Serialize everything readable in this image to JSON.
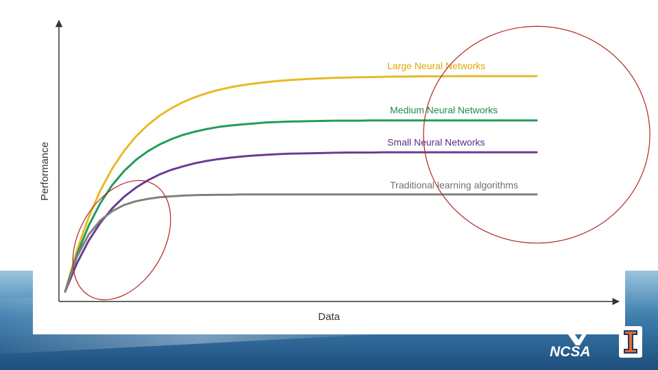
{
  "chart_data": {
    "type": "line",
    "title": "",
    "xlabel": "Data",
    "ylabel": "Performance",
    "xlim": [
      0,
      100
    ],
    "ylim": [
      0,
      100
    ],
    "grid": false,
    "legend": "inline-right",
    "x": [
      0,
      2.5,
      5,
      7.5,
      10,
      12.5,
      15,
      17.5,
      20,
      22.5,
      25,
      27.5,
      30,
      32.5,
      35,
      37.5,
      40,
      42.5,
      45,
      47.5,
      50,
      52.5,
      55,
      57.5,
      60,
      62.5,
      65,
      67.5,
      70,
      72.5,
      75,
      77.5,
      80,
      82.5,
      85,
      87.5,
      90,
      92.5,
      95,
      97.5,
      100
    ],
    "series": [
      {
        "name": "Large Neural Networks",
        "color": "#e8b924",
        "values": [
          3.0,
          20.6,
          34.8,
          46.3,
          55.6,
          63.1,
          69.2,
          74.1,
          78.1,
          81.3,
          83.9,
          86.0,
          87.7,
          89.1,
          90.2,
          91.1,
          91.8,
          92.4,
          92.9,
          93.3,
          93.6,
          93.9,
          94.1,
          94.3,
          94.4,
          94.5,
          94.6,
          94.7,
          94.8,
          94.8,
          94.9,
          94.9,
          94.9,
          95.0,
          95.0,
          95.0,
          95.0,
          95.0,
          95.0,
          95.0,
          95.0
        ]
      },
      {
        "name": "Medium Neural Networks",
        "color": "#1f9c5a",
        "values": [
          3.0,
          18.8,
          31.2,
          40.9,
          48.5,
          54.5,
          59.2,
          62.9,
          65.8,
          68.1,
          69.9,
          71.3,
          72.4,
          73.3,
          73.9,
          74.4,
          74.8,
          75.2,
          75.4,
          75.6,
          75.7,
          75.8,
          75.9,
          76.0,
          76.0,
          76.0,
          76.1,
          76.1,
          76.1,
          76.1,
          76.1,
          76.1,
          76.1,
          76.1,
          76.1,
          76.1,
          76.1,
          76.1,
          76.1,
          76.1,
          76.1
        ]
      },
      {
        "name": "Small Neural Networks",
        "color": "#6b3a93",
        "values": [
          3.0,
          15.1,
          24.8,
          32.5,
          38.6,
          43.5,
          47.4,
          50.5,
          53.0,
          55.0,
          56.5,
          57.8,
          58.8,
          59.6,
          60.2,
          60.7,
          61.1,
          61.4,
          61.7,
          61.9,
          62.0,
          62.1,
          62.2,
          62.3,
          62.4,
          62.4,
          62.4,
          62.5,
          62.5,
          62.5,
          62.5,
          62.5,
          62.5,
          62.5,
          62.5,
          62.5,
          62.5,
          62.5,
          62.5,
          62.5,
          62.5
        ]
      },
      {
        "name": "Traditional learning algorithms",
        "color": "#7f7f7f",
        "values": [
          3.0,
          17.9,
          27.4,
          33.5,
          37.4,
          40.0,
          41.6,
          42.6,
          43.3,
          43.7,
          44.0,
          44.2,
          44.3,
          44.4,
          44.4,
          44.5,
          44.5,
          44.5,
          44.5,
          44.5,
          44.5,
          44.5,
          44.5,
          44.5,
          44.5,
          44.5,
          44.5,
          44.5,
          44.5,
          44.5,
          44.5,
          44.5,
          44.5,
          44.5,
          44.5,
          44.5,
          44.5,
          44.5,
          44.5,
          44.5,
          44.5
        ]
      }
    ],
    "annotations": [
      {
        "shape": "ellipse",
        "color": "#b22222",
        "center": [
          12,
          25
        ],
        "radii": [
          15,
          22
        ],
        "rotation": 30
      },
      {
        "shape": "ellipse",
        "color": "#b22222",
        "center": [
          100,
          70
        ],
        "radii": [
          40,
          37
        ]
      }
    ]
  },
  "logos": {
    "ncsa": "NCSA",
    "illinois": "I"
  }
}
